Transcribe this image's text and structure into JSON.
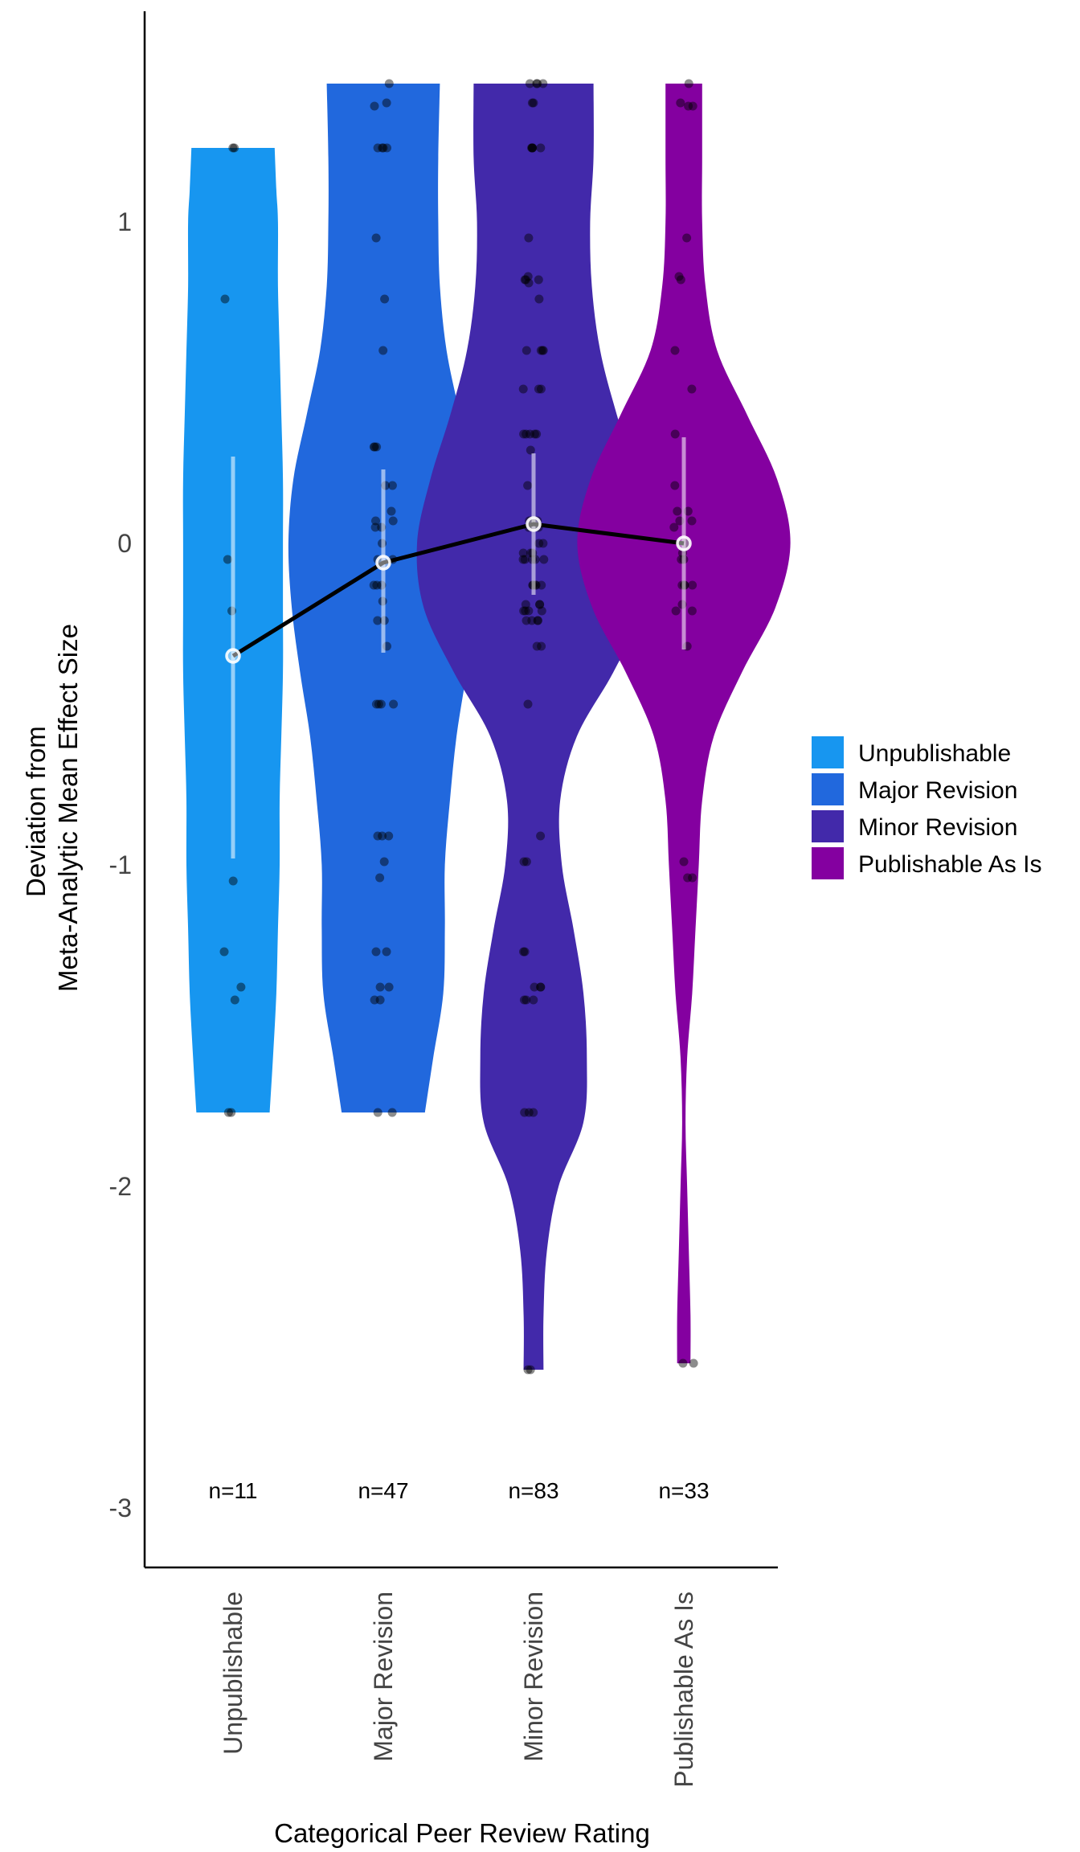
{
  "chart_data": {
    "type": "violin",
    "title": "",
    "xlabel": "Categorical Peer Review Rating",
    "ylabel_lines": [
      "Deviation from",
      "Meta-Analytic Mean Effect Size"
    ],
    "ylim": [
      -3.2,
      1.6
    ],
    "yticks": [
      {
        "value": 1,
        "label": "1"
      },
      {
        "value": 0,
        "label": "0"
      },
      {
        "value": -1,
        "label": "-1"
      },
      {
        "value": -2,
        "label": "-2"
      },
      {
        "value": -3,
        "label": "-3"
      }
    ],
    "grid": false,
    "legend_position": "right",
    "mean_line_color": "#000000",
    "categories": [
      {
        "name": "Unpublishable",
        "color": "#1796F0",
        "n_label": "n=11",
        "mean": -0.35,
        "interval": [
          -0.98,
          0.27
        ],
        "violin": [
          [
            -1.77,
            0.22
          ],
          [
            -1.6,
            0.24
          ],
          [
            -1.4,
            0.26
          ],
          [
            -1.2,
            0.27
          ],
          [
            -1.0,
            0.28
          ],
          [
            -0.8,
            0.28
          ],
          [
            -0.6,
            0.29
          ],
          [
            -0.4,
            0.3
          ],
          [
            -0.2,
            0.3
          ],
          [
            0.0,
            0.3
          ],
          [
            0.2,
            0.3
          ],
          [
            0.4,
            0.29
          ],
          [
            0.6,
            0.28
          ],
          [
            0.8,
            0.27
          ],
          [
            1.0,
            0.27
          ],
          [
            1.1,
            0.26
          ],
          [
            1.23,
            0.25
          ]
        ],
        "points": [
          1.23,
          1.23,
          0.76,
          -0.05,
          -0.21,
          -1.05,
          -1.27,
          -1.38,
          -1.42,
          -1.77,
          -1.77
        ]
      },
      {
        "name": "Major Revision",
        "color": "#2168DD",
        "n_label": "n=47",
        "mean": -0.06,
        "interval": [
          -0.34,
          0.23
        ],
        "violin": [
          [
            -1.77,
            0.25
          ],
          [
            -1.6,
            0.3
          ],
          [
            -1.4,
            0.36
          ],
          [
            -1.2,
            0.37
          ],
          [
            -1.0,
            0.37
          ],
          [
            -0.8,
            0.4
          ],
          [
            -0.6,
            0.44
          ],
          [
            -0.4,
            0.5
          ],
          [
            -0.2,
            0.55
          ],
          [
            0.0,
            0.57
          ],
          [
            0.2,
            0.54
          ],
          [
            0.4,
            0.46
          ],
          [
            0.6,
            0.38
          ],
          [
            0.8,
            0.34
          ],
          [
            1.0,
            0.33
          ],
          [
            1.2,
            0.33
          ],
          [
            1.43,
            0.34
          ]
        ],
        "points": [
          1.43,
          1.37,
          1.36,
          1.23,
          1.23,
          1.23,
          0.95,
          0.76,
          0.6,
          0.3,
          0.3,
          0.18,
          0.07,
          0.05,
          0.0,
          -0.05,
          -0.13,
          -0.13,
          -0.24,
          -0.32,
          -0.5,
          -0.5,
          -0.5,
          -0.91,
          -0.91,
          -0.99,
          -1.04,
          -1.27,
          -1.38,
          -1.38,
          -1.42,
          -1.42,
          -1.77,
          -1.77,
          0.1,
          -0.18,
          -0.05,
          0.18,
          -0.5,
          -0.91,
          -1.27,
          0.07,
          -0.24,
          1.23,
          0.3,
          -0.13,
          0.05
        ]
      },
      {
        "name": "Minor Revision",
        "color": "#4229AA",
        "n_label": "n=83",
        "mean": 0.06,
        "interval": [
          -0.16,
          0.28
        ],
        "violin": [
          [
            -2.57,
            0.06
          ],
          [
            -2.4,
            0.06
          ],
          [
            -2.2,
            0.08
          ],
          [
            -2.0,
            0.15
          ],
          [
            -1.8,
            0.3
          ],
          [
            -1.6,
            0.32
          ],
          [
            -1.4,
            0.3
          ],
          [
            -1.2,
            0.24
          ],
          [
            -1.0,
            0.17
          ],
          [
            -0.8,
            0.16
          ],
          [
            -0.6,
            0.26
          ],
          [
            -0.4,
            0.48
          ],
          [
            -0.2,
            0.66
          ],
          [
            0.0,
            0.7
          ],
          [
            0.2,
            0.62
          ],
          [
            0.4,
            0.5
          ],
          [
            0.6,
            0.4
          ],
          [
            0.8,
            0.35
          ],
          [
            1.0,
            0.34
          ],
          [
            1.2,
            0.36
          ],
          [
            1.43,
            0.36
          ]
        ],
        "points": [
          1.43,
          1.43,
          1.43,
          1.43,
          1.37,
          1.37,
          1.23,
          1.23,
          1.23,
          1.23,
          0.95,
          0.83,
          0.82,
          0.82,
          0.81,
          0.76,
          0.6,
          0.6,
          0.6,
          0.48,
          0.48,
          0.34,
          0.34,
          0.34,
          0.34,
          0.29,
          0.18,
          0.07,
          0.07,
          0.05,
          0.05,
          0.0,
          -0.03,
          -0.03,
          -0.05,
          -0.05,
          -0.05,
          -0.05,
          -0.13,
          -0.13,
          -0.13,
          -0.13,
          -0.19,
          -0.19,
          -0.21,
          -0.21,
          -0.21,
          -0.24,
          -0.24,
          -0.24,
          -0.32,
          -0.32,
          -0.5,
          -0.91,
          -0.99,
          -0.99,
          -1.27,
          -1.27,
          -1.38,
          -1.38,
          -1.38,
          -1.42,
          -1.42,
          -1.42,
          -1.77,
          -1.77,
          -1.77,
          -2.57,
          -2.57,
          0.07,
          -0.19,
          0.34,
          0.6,
          -0.05,
          -0.13,
          0.82,
          1.23,
          -0.21,
          0.05,
          -0.24,
          0.48,
          0.0,
          -0.03
        ]
      },
      {
        "name": "Publishable As Is",
        "color": "#8400A0",
        "n_label": "n=33",
        "mean": 0.0,
        "interval": [
          -0.33,
          0.33
        ],
        "violin": [
          [
            -2.55,
            0.04
          ],
          [
            -2.4,
            0.04
          ],
          [
            -2.2,
            0.03
          ],
          [
            -2.0,
            0.02
          ],
          [
            -1.8,
            0.01
          ],
          [
            -1.6,
            0.02
          ],
          [
            -1.4,
            0.05
          ],
          [
            -1.2,
            0.07
          ],
          [
            -1.0,
            0.09
          ],
          [
            -0.8,
            0.11
          ],
          [
            -0.6,
            0.18
          ],
          [
            -0.4,
            0.35
          ],
          [
            -0.2,
            0.55
          ],
          [
            0.0,
            0.64
          ],
          [
            0.2,
            0.56
          ],
          [
            0.4,
            0.38
          ],
          [
            0.6,
            0.2
          ],
          [
            0.8,
            0.13
          ],
          [
            1.0,
            0.11
          ],
          [
            1.2,
            0.11
          ],
          [
            1.43,
            0.11
          ]
        ],
        "points": [
          1.43,
          1.37,
          1.36,
          1.36,
          0.95,
          0.83,
          0.82,
          0.6,
          0.48,
          0.34,
          0.18,
          0.1,
          0.07,
          0.05,
          0.0,
          -0.03,
          -0.05,
          -0.13,
          -0.13,
          -0.13,
          -0.19,
          -0.21,
          -0.21,
          -0.32,
          -0.99,
          -1.04,
          -1.04,
          -2.55,
          -2.55,
          0.07,
          -0.13,
          -0.05,
          0.1
        ]
      }
    ]
  }
}
